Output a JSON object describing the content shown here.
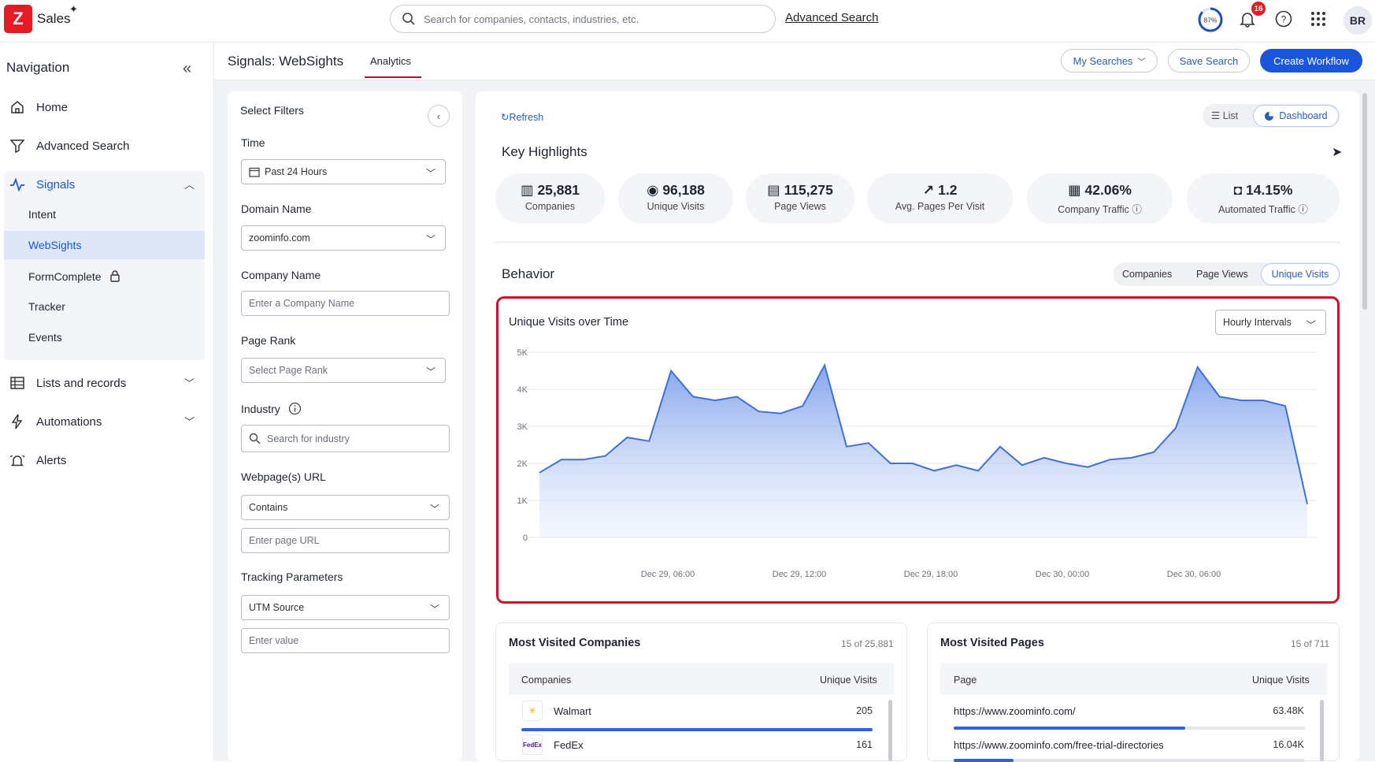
{
  "app": {
    "name": "Sales",
    "logo_letter": "Z",
    "brand_color": "#e31b23"
  },
  "search": {
    "placeholder": "Search for companies, contacts, industries, etc.",
    "advanced_link": "Advanced Search"
  },
  "header": {
    "progress_label": "87%",
    "progress_value": 0.87,
    "notifications": "16",
    "avatar": "BR"
  },
  "nav": {
    "title": "Navigation",
    "items": [
      {
        "label": "Home",
        "icon": "home-icon"
      },
      {
        "label": "Advanced Search",
        "icon": "filter-icon"
      },
      {
        "label": "Signals",
        "icon": "pulse-icon"
      },
      {
        "label": "Lists and records",
        "icon": "table-icon"
      },
      {
        "label": "Automations",
        "icon": "lightning-icon"
      },
      {
        "label": "Alerts",
        "icon": "alarm-icon"
      }
    ],
    "signals_sub": [
      "Intent",
      "WebSights",
      "FormComplete",
      "Tracker",
      "Events"
    ]
  },
  "page": {
    "title": "Signals: WebSights",
    "tab": "Analytics",
    "my_searches": "My Searches",
    "save_search": "Save Search",
    "create_workflow": "Create Workflow"
  },
  "filters": {
    "title": "Select Filters",
    "time_label": "Time",
    "time_value": "Past 24 Hours",
    "domain_label": "Domain Name",
    "domain_value": "zoominfo.com",
    "company_label": "Company Name",
    "company_placeholder": "Enter a Company Name",
    "rank_label": "Page Rank",
    "rank_placeholder": "Select Page Rank",
    "industry_label": "Industry",
    "industry_placeholder": "Search for industry",
    "url_label": "Webpage(s) URL",
    "url_operator": "Contains",
    "url_placeholder": "Enter page URL",
    "tracking_label": "Tracking Parameters",
    "tracking_value": "UTM Source",
    "tracking_placeholder": "Enter value"
  },
  "dashboard": {
    "refresh": "Refresh",
    "view_list": "List",
    "view_dashboard": "Dashboard",
    "highlights_title": "Key Highlights",
    "kpis": [
      {
        "value": "25,881",
        "label": "Companies",
        "icon": "building-icon"
      },
      {
        "value": "96,188",
        "label": "Unique Visits",
        "icon": "eye-icon"
      },
      {
        "value": "115,275",
        "label": "Page Views",
        "icon": "document-icon"
      },
      {
        "value": "1.2",
        "label": "Avg. Pages Per Visit",
        "icon": "trend-icon"
      },
      {
        "value": "42.06%",
        "label": "Company Traffic",
        "icon": "office-icon"
      },
      {
        "value": "14.15%",
        "label": "Automated Traffic",
        "icon": "robot-icon"
      }
    ],
    "behavior_title": "Behavior",
    "behavior_tabs": [
      "Companies",
      "Page Views",
      "Unique Visits"
    ],
    "chart_title": "Unique Visits over Time",
    "interval": "Hourly Intervals"
  },
  "chart_data": {
    "type": "area",
    "title": "Unique Visits over Time",
    "xlabel": "",
    "ylabel": "",
    "ylim": [
      0,
      5000
    ],
    "y_ticks": [
      "5K",
      "4K",
      "3K",
      "2K",
      "1K",
      "0"
    ],
    "x_ticks": [
      "Dec 29, 06:00",
      "Dec 29, 12:00",
      "Dec 29, 18:00",
      "Dec 30, 00:00",
      "Dec 30, 06:00"
    ],
    "grid": true,
    "color": "#3f6fd8",
    "series": [
      {
        "values": [
          1750,
          2100,
          2100,
          2200,
          2700,
          2600,
          4500,
          3800,
          3700,
          3800,
          3400,
          3350,
          3550,
          4650,
          2450,
          2550,
          2000,
          2000,
          1800,
          1950,
          1800,
          2450,
          1950,
          2150,
          2000,
          1900,
          2100,
          2150,
          2300,
          2950,
          4600,
          3800,
          3700,
          3700,
          3550,
          900
        ]
      }
    ]
  },
  "companies_card": {
    "title": "Most Visited Companies",
    "count": "15 of 25,881",
    "col1": "Companies",
    "col2": "Unique Visits",
    "rows": [
      {
        "name": "Walmart",
        "value": "205",
        "share": 1.0
      },
      {
        "name": "FedEx",
        "value": "161",
        "share": 0.79
      }
    ]
  },
  "pages_card": {
    "title": "Most Visited Pages",
    "count": "15 of 711",
    "col1": "Page",
    "col2": "Unique Visits",
    "rows": [
      {
        "url": "https://www.zoominfo.com/",
        "value": "63.48K",
        "share": 0.66
      },
      {
        "url": "https://www.zoominfo.com/free-trial-directories",
        "value": "16.04K",
        "share": 0.17
      }
    ]
  }
}
